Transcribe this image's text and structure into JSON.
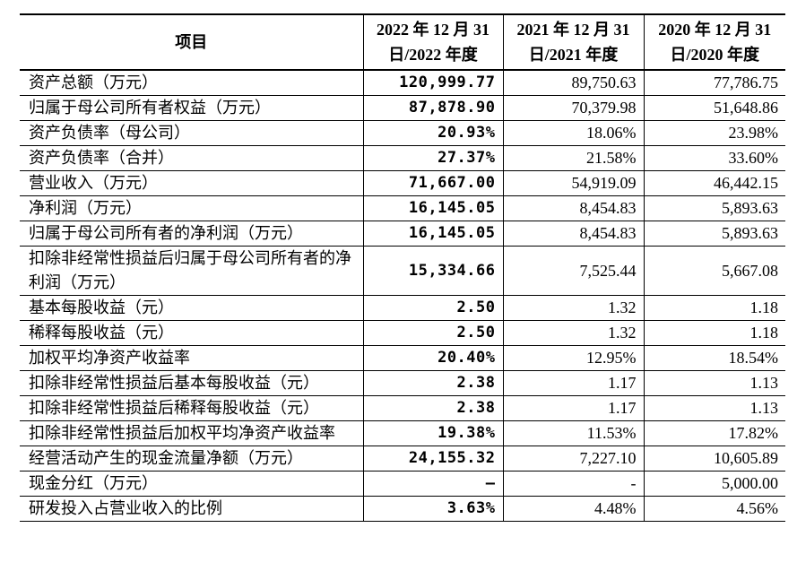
{
  "table": {
    "header": [
      "项目",
      "2022 年 12 月 31 日/2022 年度",
      "2021 年 12 月 31 日/2021 年度",
      "2020 年 12 月 31 日/2020 年度"
    ],
    "rows": [
      [
        "资产总额（万元）",
        "120,999.77",
        "89,750.63",
        "77,786.75"
      ],
      [
        "归属于母公司所有者权益（万元）",
        "87,878.90",
        "70,379.98",
        "51,648.86"
      ],
      [
        "资产负债率（母公司）",
        "20.93%",
        "18.06%",
        "23.98%"
      ],
      [
        "资产负债率（合并）",
        "27.37%",
        "21.58%",
        "33.60%"
      ],
      [
        "营业收入（万元）",
        "71,667.00",
        "54,919.09",
        "46,442.15"
      ],
      [
        "净利润（万元）",
        "16,145.05",
        "8,454.83",
        "5,893.63"
      ],
      [
        "归属于母公司所有者的净利润（万元）",
        "16,145.05",
        "8,454.83",
        "5,893.63"
      ],
      [
        "扣除非经常性损益后归属于母公司所有者的净利润（万元）",
        "15,334.66",
        "7,525.44",
        "5,667.08"
      ],
      [
        "基本每股收益（元）",
        "2.50",
        "1.32",
        "1.18"
      ],
      [
        "稀释每股收益（元）",
        "2.50",
        "1.32",
        "1.18"
      ],
      [
        "加权平均净资产收益率",
        "20.40%",
        "12.95%",
        "18.54%"
      ],
      [
        "扣除非经常性损益后基本每股收益（元）",
        "2.38",
        "1.17",
        "1.13"
      ],
      [
        "扣除非经常性损益后稀释每股收益（元）",
        "2.38",
        "1.17",
        "1.13"
      ],
      [
        "扣除非经常性损益后加权平均净资产收益率",
        "19.38%",
        "11.53%",
        "17.82%"
      ],
      [
        "经营活动产生的现金流量净额（万元）",
        "24,155.32",
        "7,227.10",
        "10,605.89"
      ],
      [
        "现金分红（万元）",
        "–",
        "-",
        "5,000.00"
      ],
      [
        "研发投入占营业收入的比例",
        "3.63%",
        "4.48%",
        "4.56%"
      ]
    ]
  }
}
